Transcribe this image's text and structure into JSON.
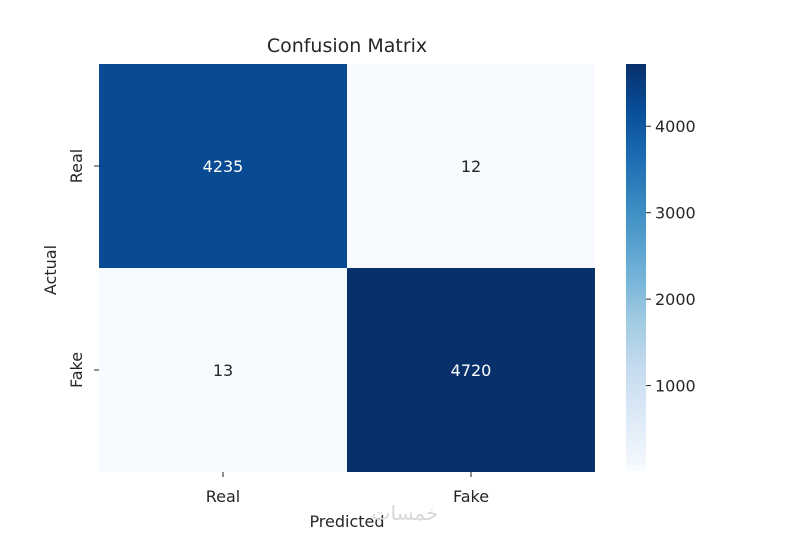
{
  "chart_data": {
    "type": "heatmap",
    "title": "Confusion Matrix",
    "xlabel": "Predicted",
    "ylabel": "Actual",
    "x_categories": [
      "Real",
      "Fake"
    ],
    "y_categories": [
      "Real",
      "Fake"
    ],
    "values": [
      [
        4235,
        12
      ],
      [
        13,
        4720
      ]
    ],
    "colormap": "Blues",
    "color_range": [
      12,
      4720
    ],
    "colorbar_ticks": [
      1000,
      2000,
      3000,
      4000
    ],
    "grid": false
  },
  "watermark": "خمسات"
}
